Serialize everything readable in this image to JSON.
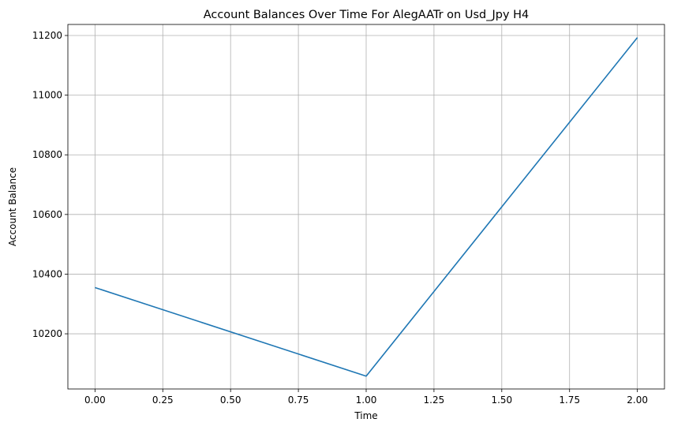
{
  "chart_data": {
    "type": "line",
    "title": "Account Balances Over Time For AlegAATr on Usd_Jpy H4",
    "xlabel": "Time",
    "ylabel": "Account Balance",
    "x": [
      0,
      1,
      2
    ],
    "series": [
      {
        "values": [
          10355,
          10058,
          11193
        ],
        "color": "#1f77b4"
      }
    ],
    "xlim": [
      -0.1,
      2.1
    ],
    "ylim": [
      10015,
      11237
    ],
    "xticks": [
      0.0,
      0.25,
      0.5,
      0.75,
      1.0,
      1.25,
      1.5,
      1.75,
      2.0
    ],
    "xtick_labels": [
      "0.00",
      "0.25",
      "0.50",
      "0.75",
      "1.00",
      "1.25",
      "1.50",
      "1.75",
      "2.00"
    ],
    "yticks": [
      10200,
      10400,
      10600,
      10800,
      11000,
      11200
    ],
    "ytick_labels": [
      "10200",
      "10400",
      "10600",
      "10800",
      "11000",
      "11200"
    ],
    "grid": true,
    "grid_color": "#b0b0b0"
  }
}
